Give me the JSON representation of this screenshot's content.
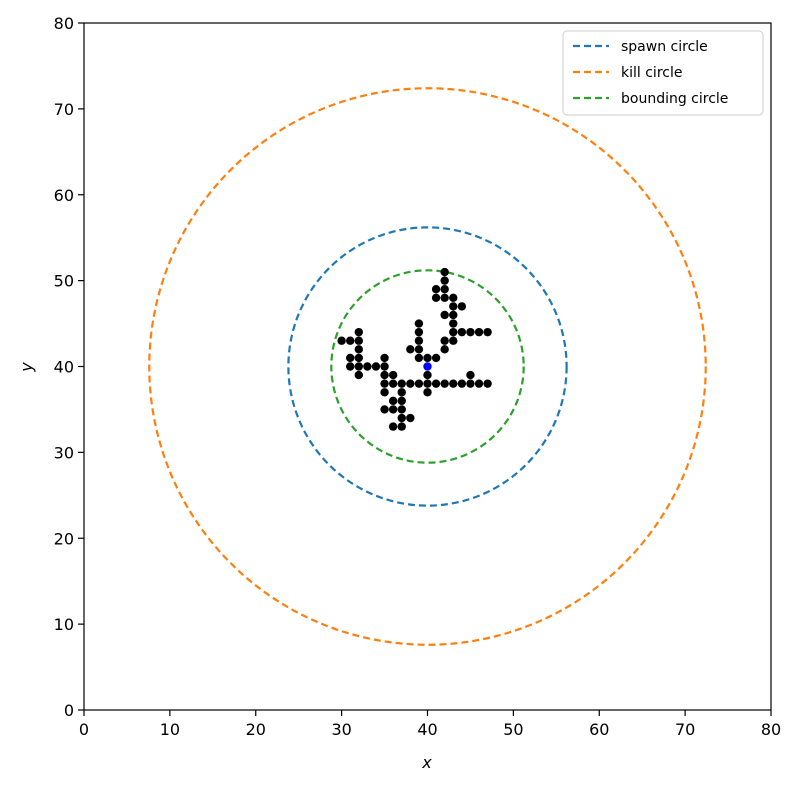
{
  "chart_data": {
    "type": "scatter",
    "xlabel": "x",
    "ylabel": "y",
    "xlim": [
      0,
      80
    ],
    "ylim": [
      0,
      80
    ],
    "xticks": [
      "0",
      "10",
      "20",
      "30",
      "40",
      "50",
      "60",
      "70",
      "80"
    ],
    "yticks": [
      "0",
      "10",
      "20",
      "30",
      "40",
      "50",
      "60",
      "70",
      "80"
    ],
    "grid": false,
    "legend_position": "top-right",
    "circles": [
      {
        "name": "spawn circle",
        "color": "#1f77b4",
        "cx": 40,
        "cy": 40,
        "r": 16.2
      },
      {
        "name": "kill circle",
        "color": "#ff7f0e",
        "cx": 40,
        "cy": 40,
        "r": 32.4
      },
      {
        "name": "bounding circle",
        "color": "#2ca02c",
        "cx": 40,
        "cy": 40,
        "r": 11.2
      }
    ],
    "seed": {
      "x": 40,
      "y": 40,
      "color": "#0000ff"
    },
    "particle_color": "#000000",
    "particles": [
      [
        42,
        51
      ],
      [
        42,
        50
      ],
      [
        41,
        49
      ],
      [
        42,
        49
      ],
      [
        41,
        48
      ],
      [
        42,
        48
      ],
      [
        43,
        48
      ],
      [
        43,
        47
      ],
      [
        44,
        47
      ],
      [
        42,
        46
      ],
      [
        43,
        46
      ],
      [
        43,
        45
      ],
      [
        39,
        45
      ],
      [
        43,
        44
      ],
      [
        44,
        44
      ],
      [
        45,
        44
      ],
      [
        46,
        44
      ],
      [
        47,
        44
      ],
      [
        32,
        44
      ],
      [
        39,
        44
      ],
      [
        30,
        43
      ],
      [
        31,
        43
      ],
      [
        32,
        43
      ],
      [
        39,
        43
      ],
      [
        43,
        43
      ],
      [
        42,
        43
      ],
      [
        32,
        42
      ],
      [
        38,
        42
      ],
      [
        39,
        42
      ],
      [
        42,
        42
      ],
      [
        31,
        41
      ],
      [
        32,
        41
      ],
      [
        35,
        41
      ],
      [
        39,
        41
      ],
      [
        40,
        41
      ],
      [
        41,
        41
      ],
      [
        31,
        40
      ],
      [
        32,
        40
      ],
      [
        33,
        40
      ],
      [
        34,
        40
      ],
      [
        35,
        40
      ],
      [
        32,
        39
      ],
      [
        35,
        39
      ],
      [
        36,
        39
      ],
      [
        40,
        39
      ],
      [
        45,
        39
      ],
      [
        35,
        38
      ],
      [
        36,
        38
      ],
      [
        37,
        38
      ],
      [
        38,
        38
      ],
      [
        39,
        38
      ],
      [
        40,
        38
      ],
      [
        41,
        38
      ],
      [
        42,
        38
      ],
      [
        43,
        38
      ],
      [
        44,
        38
      ],
      [
        45,
        38
      ],
      [
        46,
        38
      ],
      [
        47,
        38
      ],
      [
        35,
        37
      ],
      [
        37,
        37
      ],
      [
        40,
        37
      ],
      [
        36,
        36
      ],
      [
        37,
        36
      ],
      [
        35,
        35
      ],
      [
        36,
        35
      ],
      [
        37,
        35
      ],
      [
        37,
        34
      ],
      [
        38,
        34
      ],
      [
        36,
        33
      ],
      [
        37,
        33
      ]
    ]
  }
}
